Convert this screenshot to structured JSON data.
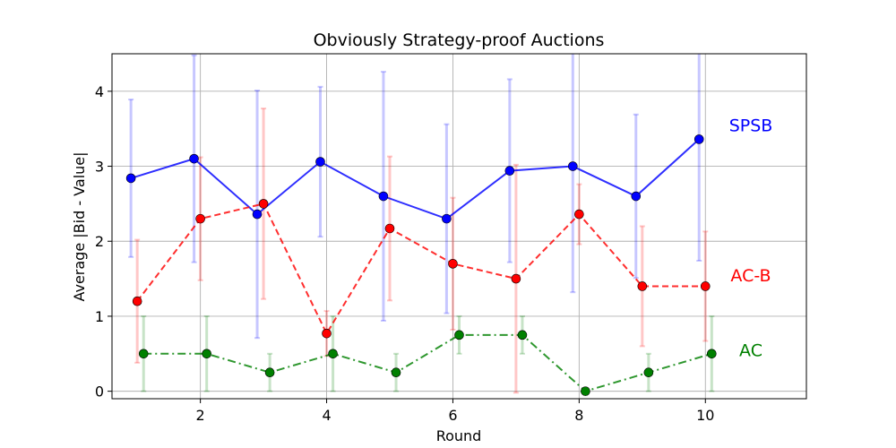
{
  "chart_data": {
    "type": "line",
    "title": "Obviously Strategy-proof Auctions",
    "xlabel": "Round",
    "ylabel": "Average |Bid - Value|",
    "xlim": [
      0.6,
      11.6
    ],
    "ylim": [
      -0.1,
      4.5
    ],
    "x_ticks": [
      2,
      4,
      6,
      8,
      10
    ],
    "y_ticks": [
      0,
      1,
      2,
      3,
      4
    ],
    "grid": true,
    "series": [
      {
        "name": "SPSB",
        "color": "#0000ff",
        "linestyle": "solid",
        "x": [
          0.9,
          1.9,
          2.9,
          3.9,
          4.9,
          5.9,
          6.9,
          7.9,
          8.9,
          9.9
        ],
        "y": [
          2.84,
          3.1,
          2.36,
          3.06,
          2.6,
          2.3,
          2.94,
          3.0,
          2.6,
          3.36
        ],
        "err": [
          1.05,
          1.38,
          1.65,
          1.0,
          1.66,
          1.26,
          1.22,
          1.68,
          1.09,
          1.62
        ]
      },
      {
        "name": "AC-B",
        "color": "#ff0000",
        "linestyle": "dashed",
        "x": [
          1.0,
          2.0,
          3.0,
          4.0,
          5.0,
          6.0,
          7.0,
          8.0,
          9.0,
          10.0
        ],
        "y": [
          1.2,
          2.3,
          2.5,
          0.77,
          2.17,
          1.7,
          1.5,
          2.36,
          1.4,
          1.4
        ],
        "err": [
          0.82,
          0.82,
          1.27,
          0.3,
          0.96,
          0.88,
          1.52,
          0.4,
          0.8,
          0.73
        ]
      },
      {
        "name": "AC",
        "color": "#008000",
        "linestyle": "dashdot",
        "x": [
          1.1,
          2.1,
          3.1,
          4.1,
          5.1,
          6.1,
          7.1,
          8.1,
          9.1,
          10.1
        ],
        "y": [
          0.5,
          0.5,
          0.25,
          0.5,
          0.25,
          0.75,
          0.75,
          0.0,
          0.25,
          0.5
        ],
        "err": [
          0.5,
          0.5,
          0.25,
          0.5,
          0.25,
          0.25,
          0.25,
          0.0,
          0.25,
          0.5
        ]
      }
    ]
  }
}
